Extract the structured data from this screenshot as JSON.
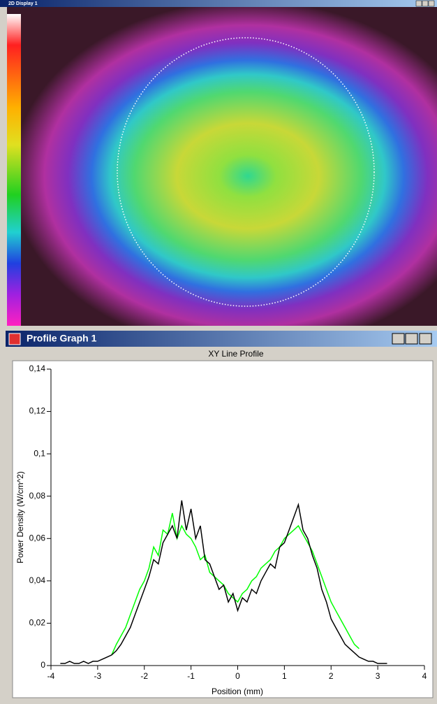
{
  "windows": {
    "display": {
      "title": "2D Display 1"
    },
    "profile": {
      "title": "Profile Graph 1"
    }
  },
  "chart_data": {
    "type": "line",
    "title": "XY Line Profile",
    "x_label": "Position (mm)",
    "y_label": "Power Density (W/cm^2)",
    "xlim": [
      -4,
      4
    ],
    "xticks": [
      -4,
      -3,
      -2,
      -1,
      0,
      1,
      2,
      3,
      4
    ],
    "ylim": [
      0,
      0.14
    ],
    "yticks": [
      0,
      {
        "value": 0.02,
        "label": "0,02"
      },
      {
        "value": 0.04,
        "label": "0,04"
      },
      {
        "value": 0.06,
        "label": "0,06"
      },
      {
        "value": 0.08,
        "label": "0,08"
      },
      {
        "value": 0.1,
        "label": "0,1"
      },
      {
        "value": 0.12,
        "label": "0,12"
      },
      {
        "value": 0.14,
        "label": "0,14"
      }
    ],
    "grid": false,
    "series": [
      {
        "color": "#00ff00",
        "x": [
          -2.7,
          -2.6,
          -2.5,
          -2.4,
          -2.3,
          -2.2,
          -2.1,
          -2.0,
          -1.9,
          -1.8,
          -1.7,
          -1.6,
          -1.5,
          -1.4,
          -1.3,
          -1.2,
          -1.1,
          -1.0,
          -0.9,
          -0.8,
          -0.7,
          -0.6,
          -0.5,
          -0.4,
          -0.3,
          -0.2,
          -0.1,
          0.0,
          0.1,
          0.2,
          0.3,
          0.4,
          0.5,
          0.6,
          0.7,
          0.8,
          0.9,
          1.0,
          1.1,
          1.2,
          1.3,
          1.4,
          1.5,
          1.6,
          1.7,
          1.8,
          1.9,
          2.0,
          2.1,
          2.2,
          2.3,
          2.4,
          2.5,
          2.6
        ],
        "values": [
          0.005,
          0.01,
          0.014,
          0.018,
          0.024,
          0.03,
          0.036,
          0.04,
          0.046,
          0.056,
          0.052,
          0.064,
          0.062,
          0.072,
          0.06,
          0.066,
          0.062,
          0.06,
          0.056,
          0.05,
          0.052,
          0.044,
          0.042,
          0.04,
          0.038,
          0.034,
          0.032,
          0.03,
          0.034,
          0.036,
          0.04,
          0.042,
          0.046,
          0.048,
          0.05,
          0.054,
          0.056,
          0.06,
          0.062,
          0.064,
          0.066,
          0.062,
          0.058,
          0.054,
          0.048,
          0.042,
          0.036,
          0.03,
          0.026,
          0.022,
          0.018,
          0.014,
          0.01,
          0.008
        ]
      },
      {
        "color": "#000000",
        "x": [
          -3.8,
          -3.7,
          -3.6,
          -3.5,
          -3.4,
          -3.3,
          -3.2,
          -3.1,
          -3.0,
          -2.9,
          -2.8,
          -2.7,
          -2.6,
          -2.5,
          -2.4,
          -2.3,
          -2.2,
          -2.1,
          -2.0,
          -1.9,
          -1.8,
          -1.7,
          -1.6,
          -1.5,
          -1.4,
          -1.3,
          -1.2,
          -1.1,
          -1.0,
          -0.9,
          -0.8,
          -0.7,
          -0.6,
          -0.5,
          -0.4,
          -0.3,
          -0.2,
          -0.1,
          0.0,
          0.1,
          0.2,
          0.3,
          0.4,
          0.5,
          0.6,
          0.7,
          0.8,
          0.9,
          1.0,
          1.1,
          1.2,
          1.3,
          1.4,
          1.5,
          1.6,
          1.7,
          1.8,
          1.9,
          2.0,
          2.1,
          2.2,
          2.3,
          2.4,
          2.5,
          2.6,
          2.7,
          2.8,
          2.9,
          3.0,
          3.1,
          3.2
        ],
        "values": [
          0.001,
          0.001,
          0.002,
          0.001,
          0.001,
          0.002,
          0.001,
          0.002,
          0.002,
          0.003,
          0.004,
          0.005,
          0.007,
          0.01,
          0.014,
          0.018,
          0.024,
          0.03,
          0.036,
          0.042,
          0.05,
          0.048,
          0.058,
          0.062,
          0.066,
          0.06,
          0.078,
          0.064,
          0.074,
          0.06,
          0.066,
          0.05,
          0.048,
          0.042,
          0.036,
          0.038,
          0.03,
          0.034,
          0.026,
          0.032,
          0.03,
          0.036,
          0.034,
          0.04,
          0.044,
          0.048,
          0.046,
          0.056,
          0.058,
          0.064,
          0.07,
          0.076,
          0.064,
          0.06,
          0.052,
          0.046,
          0.036,
          0.03,
          0.022,
          0.018,
          0.014,
          0.01,
          0.008,
          0.006,
          0.004,
          0.003,
          0.002,
          0.002,
          0.001,
          0.001,
          0.001
        ]
      }
    ]
  }
}
